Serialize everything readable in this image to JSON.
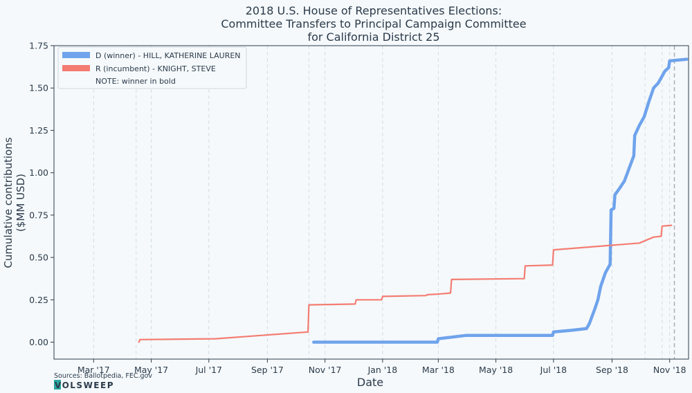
{
  "chart_data": {
    "type": "line",
    "title": [
      "2018 U.S. House of Representatives Elections:",
      "Committee Transfers to Principal Campaign Committee",
      "for California District 25"
    ],
    "xlabel": "Date",
    "ylabel": [
      "Cumulative contributions",
      "($MM USD)"
    ],
    "ylim": [
      -0.1,
      1.75
    ],
    "yticks": [
      0.0,
      0.25,
      0.5,
      0.75,
      1.0,
      1.25,
      1.5,
      1.75
    ],
    "ytick_labels": [
      "0.00",
      "0.25",
      "0.50",
      "0.75",
      "1.00",
      "1.25",
      "1.50",
      "1.75"
    ],
    "xlim": [
      "2017-01-18",
      "2018-11-21"
    ],
    "xticks": [
      "2017-03-01",
      "2017-05-01",
      "2017-07-01",
      "2017-09-01",
      "2017-11-01",
      "2018-01-01",
      "2018-03-01",
      "2018-05-01",
      "2018-07-01",
      "2018-09-01",
      "2018-11-01"
    ],
    "xtick_labels": [
      "Mar '17",
      "May '17",
      "Jul '17",
      "Sep '17",
      "Nov '17",
      "Jan '18",
      "Mar '18",
      "May '18",
      "Jul '18",
      "Sep '18",
      "Nov '18"
    ],
    "grid": "vertical dashed",
    "vlines": [
      "2017-04-15",
      "2017-10-15",
      "2018-10-06",
      "2018-10-24"
    ],
    "election_line": "2018-11-06",
    "legend_position": "top-left",
    "legend_note": "NOTE: winner in bold",
    "series": [
      {
        "name": "D (winner) - HILL, KATHERINE LAUREN",
        "color": "#6fa3ec",
        "bold": true,
        "points": [
          [
            "2017-10-20",
            0.0
          ],
          [
            "2018-02-28",
            0.0
          ],
          [
            "2018-03-01",
            0.02
          ],
          [
            "2018-03-31",
            0.04
          ],
          [
            "2018-06-30",
            0.04
          ],
          [
            "2018-07-01",
            0.06
          ],
          [
            "2018-07-20",
            0.07
          ],
          [
            "2018-08-05",
            0.08
          ],
          [
            "2018-08-08",
            0.11
          ],
          [
            "2018-08-14",
            0.2
          ],
          [
            "2018-08-17",
            0.25
          ],
          [
            "2018-08-20",
            0.33
          ],
          [
            "2018-08-25",
            0.41
          ],
          [
            "2018-08-30",
            0.46
          ],
          [
            "2018-08-31",
            0.78
          ],
          [
            "2018-09-03",
            0.79
          ],
          [
            "2018-09-04",
            0.87
          ],
          [
            "2018-09-08",
            0.9
          ],
          [
            "2018-09-14",
            0.95
          ],
          [
            "2018-09-20",
            1.04
          ],
          [
            "2018-09-24",
            1.1
          ],
          [
            "2018-09-25",
            1.22
          ],
          [
            "2018-09-30",
            1.28
          ],
          [
            "2018-10-05",
            1.33
          ],
          [
            "2018-10-10",
            1.42
          ],
          [
            "2018-10-15",
            1.5
          ],
          [
            "2018-10-20",
            1.53
          ],
          [
            "2018-10-27",
            1.6
          ],
          [
            "2018-10-31",
            1.62
          ],
          [
            "2018-11-01",
            1.66
          ],
          [
            "2018-11-19",
            1.67
          ]
        ]
      },
      {
        "name": "R (incumbent) - KNIGHT, STEVE",
        "color": "#f47c72",
        "bold": false,
        "points": [
          [
            "2017-04-18",
            0.0
          ],
          [
            "2017-04-19",
            0.015
          ],
          [
            "2017-07-08",
            0.02
          ],
          [
            "2017-10-14",
            0.06
          ],
          [
            "2017-10-15",
            0.22
          ],
          [
            "2017-12-03",
            0.225
          ],
          [
            "2017-12-04",
            0.25
          ],
          [
            "2017-12-31",
            0.25
          ],
          [
            "2018-01-01",
            0.27
          ],
          [
            "2018-02-16",
            0.275
          ],
          [
            "2018-02-17",
            0.28
          ],
          [
            "2018-03-04",
            0.285
          ],
          [
            "2018-03-14",
            0.29
          ],
          [
            "2018-03-15",
            0.37
          ],
          [
            "2018-05-31",
            0.375
          ],
          [
            "2018-06-01",
            0.45
          ],
          [
            "2018-06-30",
            0.455
          ],
          [
            "2018-07-01",
            0.545
          ],
          [
            "2018-09-30",
            0.585
          ],
          [
            "2018-10-15",
            0.62
          ],
          [
            "2018-10-23",
            0.625
          ],
          [
            "2018-10-24",
            0.685
          ],
          [
            "2018-11-03",
            0.69
          ]
        ]
      }
    ]
  },
  "footer": {
    "sources": "Sources: Ballotpedia, FEC.gov",
    "brand": "VOLSWEEP"
  }
}
